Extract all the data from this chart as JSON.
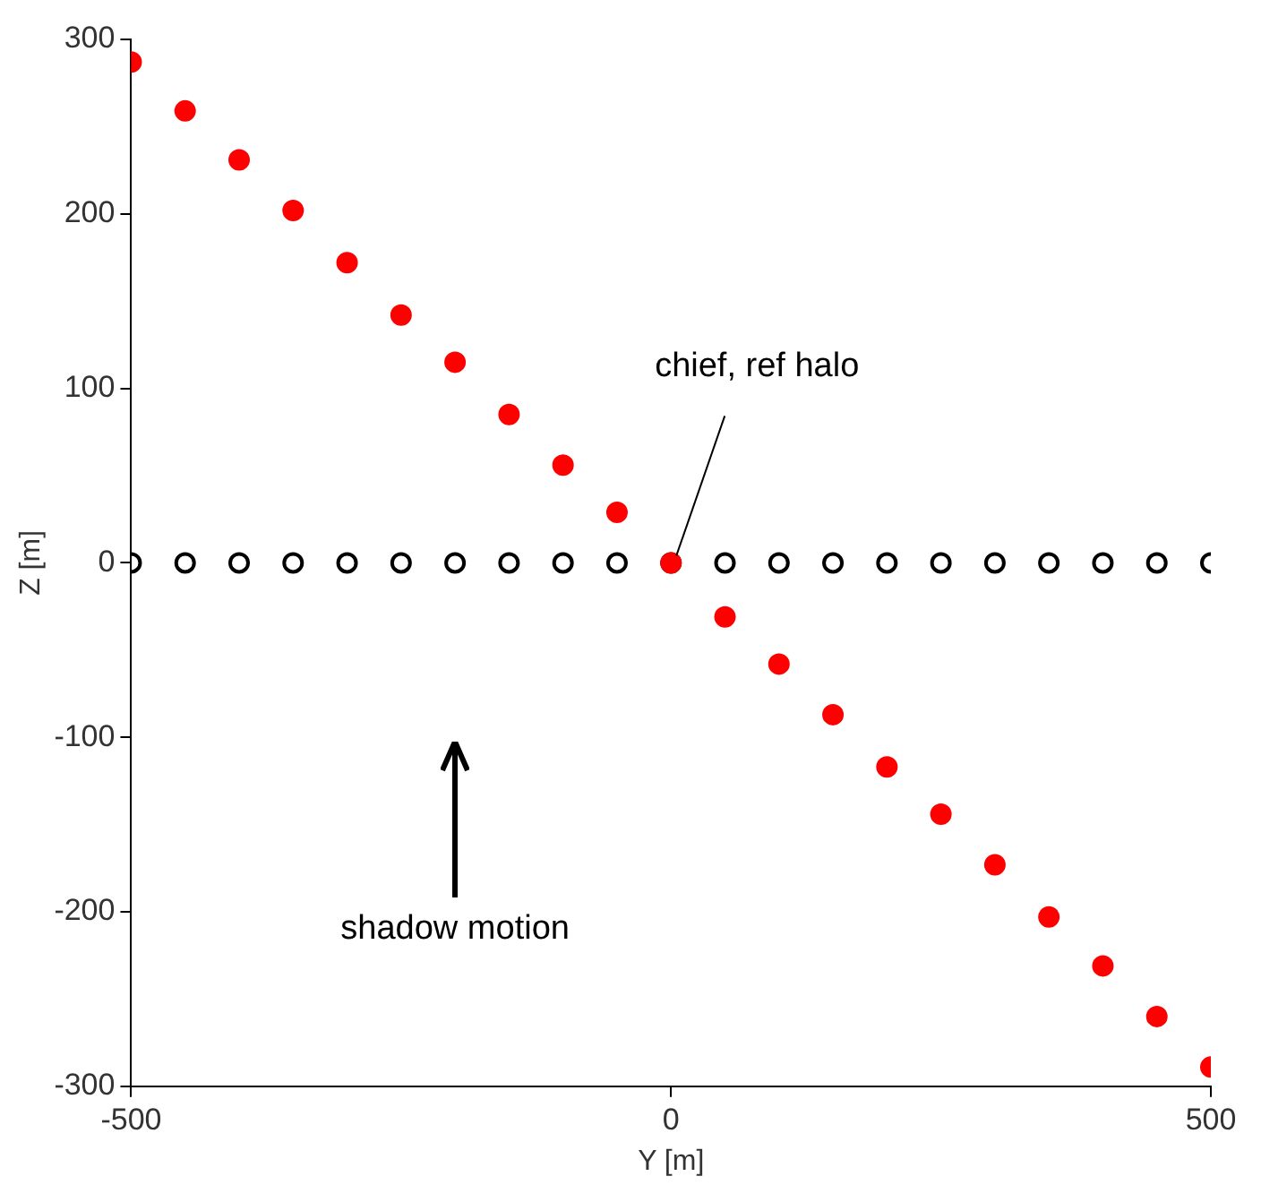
{
  "chart_data": {
    "type": "scatter",
    "xlabel": "Y [m]",
    "ylabel": "Z [m]",
    "xlim": [
      -500,
      500
    ],
    "ylim": [
      -300,
      300
    ],
    "xticks": [
      -500,
      0,
      500
    ],
    "yticks": [
      -300,
      -200,
      -100,
      0,
      100,
      200,
      300
    ],
    "grid": false,
    "legend": false,
    "marker": "circle",
    "series": [
      {
        "color": "#000000",
        "x": [
          -500,
          -450,
          -400,
          -350,
          -300,
          -250,
          -200,
          -150,
          -100,
          -50,
          0,
          50,
          100,
          150,
          200,
          250,
          300,
          350,
          400,
          450,
          500
        ],
        "values": [
          0,
          0,
          0,
          0,
          0,
          0,
          0,
          0,
          0,
          0,
          0,
          0,
          0,
          0,
          0,
          0,
          0,
          0,
          0,
          0,
          0
        ]
      },
      {
        "color": "#ff0000",
        "x": [
          -500,
          -450,
          -400,
          -350,
          -300,
          -250,
          -200,
          -150,
          -100,
          -50,
          0,
          50,
          100,
          150,
          200,
          250,
          300,
          350,
          400,
          450,
          500
        ],
        "values": [
          287,
          259,
          231,
          202,
          172,
          142,
          115,
          85,
          56,
          29,
          0,
          -31,
          -58,
          -87,
          -117,
          -144,
          -173,
          -203,
          -231,
          -260,
          -289
        ]
      }
    ],
    "annotations": [
      {
        "text": "chief, ref halo",
        "x": 0,
        "y": 0
      },
      "shadow motion"
    ]
  }
}
